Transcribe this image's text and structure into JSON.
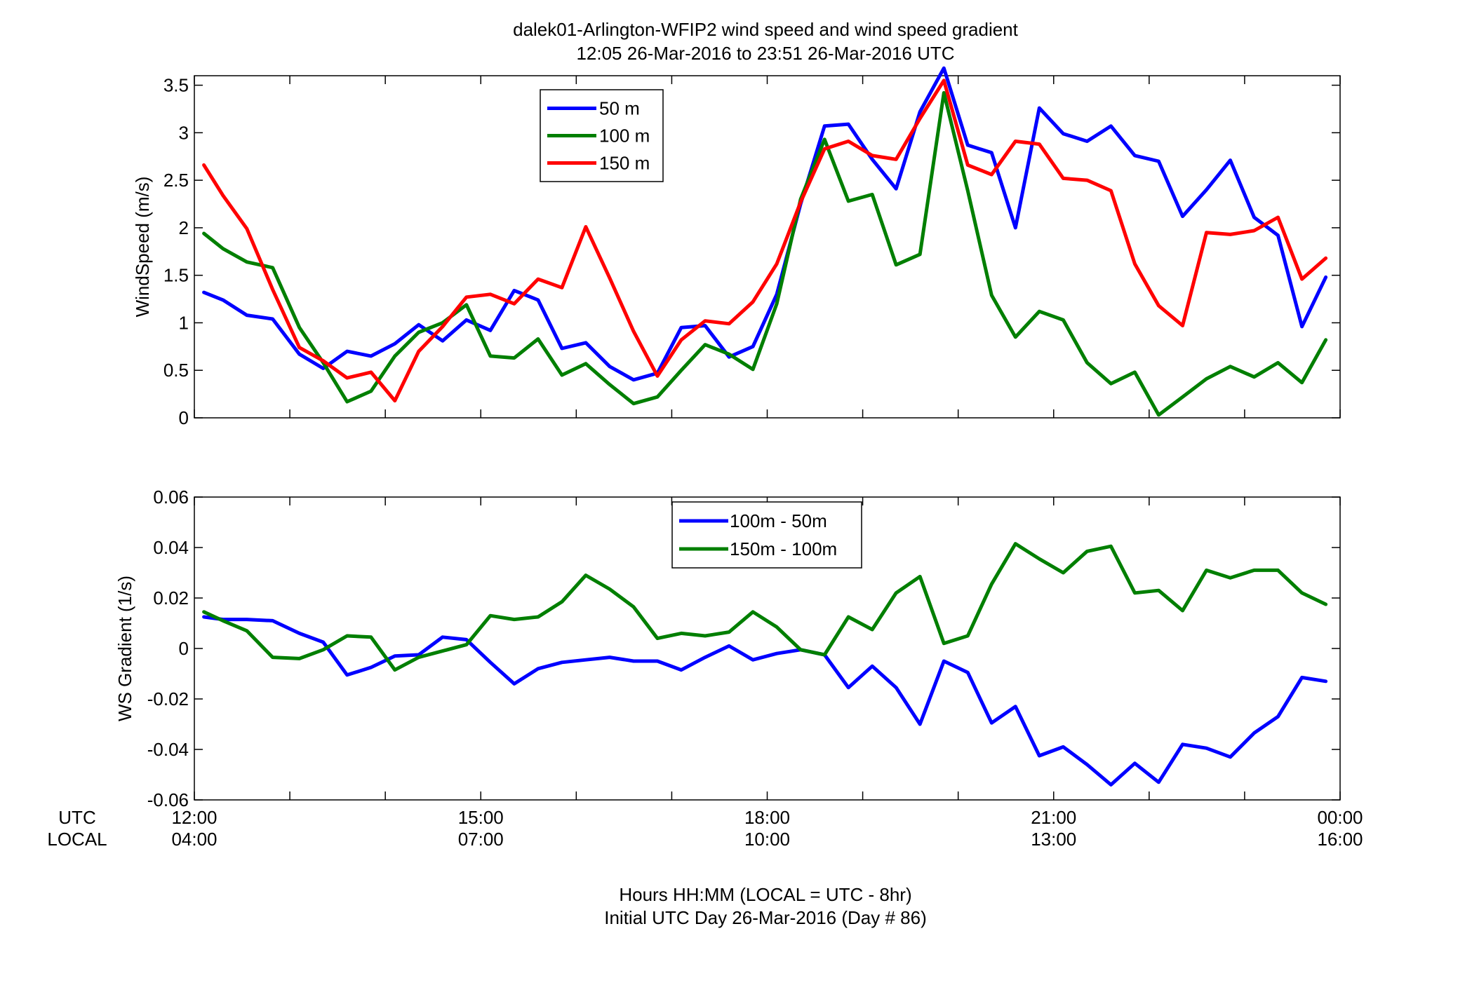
{
  "figure": {
    "title_line1": "dalek01-Arlington-WFIP2  wind speed and wind speed gradient",
    "title_line2": "12:05 26-Mar-2016 to 23:51 26-Mar-2016  UTC",
    "xlabel_line1": "Hours HH:MM  (LOCAL = UTC - 8hr)",
    "xlabel_line2": "Initial UTC Day 26-Mar-2016 (Day # 86)",
    "row_label_utc": "UTC",
    "row_label_local": "LOCAL",
    "x_ticks_utc": [
      "12:00",
      "15:00",
      "18:00",
      "21:00",
      "00:00"
    ],
    "x_ticks_local": [
      "04:00",
      "07:00",
      "10:00",
      "13:00",
      "16:00"
    ]
  },
  "chart_data": [
    {
      "type": "line",
      "ylabel": "WindSpeed (m/s)",
      "xlim": [
        12,
        24
      ],
      "ylim": [
        0,
        3.6
      ],
      "yticks": [
        0,
        0.5,
        1,
        1.5,
        2,
        2.5,
        3,
        3.5
      ],
      "ytick_labels": [
        "0",
        "0.5",
        "1",
        "1.5",
        "2",
        "2.5",
        "3",
        "3.5"
      ],
      "legend_position": "top-center-left",
      "x": [
        12.1,
        12.3,
        12.55,
        12.82,
        13.1,
        13.35,
        13.6,
        13.85,
        14.1,
        14.35,
        14.6,
        14.85,
        15.1,
        15.35,
        15.6,
        15.85,
        16.1,
        16.35,
        16.6,
        16.85,
        17.1,
        17.35,
        17.6,
        17.85,
        18.1,
        18.35,
        18.6,
        18.85,
        19.1,
        19.35,
        19.6,
        19.85,
        20.1,
        20.35,
        20.6,
        20.85,
        21.1,
        21.35,
        21.6,
        21.85,
        22.1,
        22.35,
        22.6,
        22.85,
        23.1,
        23.35,
        23.6,
        23.85
      ],
      "series": [
        {
          "name": "50 m",
          "color": "#0000ff",
          "values": [
            1.32,
            1.24,
            1.08,
            1.04,
            0.67,
            0.52,
            0.7,
            0.65,
            0.78,
            0.98,
            0.81,
            1.03,
            0.92,
            1.34,
            1.24,
            0.73,
            0.79,
            0.54,
            0.4,
            0.47,
            0.95,
            0.97,
            0.64,
            0.75,
            1.3,
            2.25,
            3.07,
            3.09,
            2.72,
            2.41,
            3.22,
            3.68,
            2.87,
            2.79,
            2.0,
            3.26,
            2.99,
            2.91,
            3.07,
            2.76,
            2.7,
            2.12,
            2.4,
            2.71,
            2.11,
            1.92,
            0.96,
            1.48
          ]
        },
        {
          "name": "100 m",
          "color": "#007f00",
          "values": [
            1.94,
            1.78,
            1.64,
            1.58,
            0.95,
            0.58,
            0.17,
            0.28,
            0.65,
            0.9,
            1.0,
            1.19,
            0.65,
            0.63,
            0.83,
            0.45,
            0.57,
            0.35,
            0.15,
            0.22,
            0.5,
            0.77,
            0.67,
            0.51,
            1.2,
            2.3,
            2.93,
            2.28,
            2.35,
            1.61,
            1.72,
            3.42,
            2.39,
            1.29,
            0.85,
            1.12,
            1.03,
            0.58,
            0.36,
            0.48,
            0.03,
            0.22,
            0.41,
            0.54,
            0.43,
            0.58,
            0.37,
            0.82
          ]
        },
        {
          "name": "150 m",
          "color": "#ff0000",
          "values": [
            2.66,
            2.34,
            1.99,
            1.35,
            0.74,
            0.6,
            0.42,
            0.48,
            0.18,
            0.7,
            0.96,
            1.27,
            1.3,
            1.2,
            1.46,
            1.37,
            2.01,
            1.47,
            0.91,
            0.44,
            0.82,
            1.02,
            0.99,
            1.22,
            1.62,
            2.27,
            2.83,
            2.91,
            2.76,
            2.72,
            3.15,
            3.55,
            2.66,
            2.56,
            2.91,
            2.88,
            2.52,
            2.5,
            2.39,
            1.62,
            1.18,
            0.97,
            1.95,
            1.93,
            1.97,
            2.11,
            1.46,
            1.68
          ]
        }
      ]
    },
    {
      "type": "line",
      "ylabel": "WS Gradient (1/s)",
      "xlim": [
        12,
        24
      ],
      "ylim": [
        -0.06,
        0.06
      ],
      "yticks": [
        -0.06,
        -0.04,
        -0.02,
        0,
        0.02,
        0.04,
        0.06
      ],
      "ytick_labels": [
        "-0.06",
        "-0.04",
        "-0.02",
        "0",
        "0.02",
        "0.04",
        "0.06"
      ],
      "legend_position": "top-center",
      "x": [
        12.1,
        12.3,
        12.55,
        12.82,
        13.1,
        13.35,
        13.6,
        13.85,
        14.1,
        14.35,
        14.6,
        14.85,
        15.1,
        15.35,
        15.6,
        15.85,
        16.1,
        16.35,
        16.6,
        16.85,
        17.1,
        17.35,
        17.6,
        17.85,
        18.1,
        18.35,
        18.6,
        18.85,
        19.1,
        19.35,
        19.6,
        19.85,
        20.1,
        20.35,
        20.6,
        20.85,
        21.1,
        21.35,
        21.6,
        21.85,
        22.1,
        22.35,
        22.6,
        22.85,
        23.1,
        23.35,
        23.6,
        23.85
      ],
      "series": [
        {
          "name": "100m - 50m",
          "color": "#0000ff",
          "values": [
            0.0125,
            0.0115,
            0.0115,
            0.011,
            0.006,
            0.0025,
            -0.0105,
            -0.0075,
            -0.003,
            -0.0025,
            0.0045,
            0.0035,
            -0.0055,
            -0.014,
            -0.008,
            -0.0055,
            -0.0045,
            -0.0035,
            -0.005,
            -0.005,
            -0.0085,
            -0.0035,
            0.001,
            -0.0045,
            -0.002,
            -0.0005,
            -0.0025,
            -0.0155,
            -0.007,
            -0.0155,
            -0.03,
            -0.005,
            -0.0095,
            -0.0295,
            -0.023,
            -0.0425,
            -0.039,
            -0.046,
            -0.054,
            -0.0455,
            -0.053,
            -0.038,
            -0.0395,
            -0.043,
            -0.0335,
            -0.027,
            -0.0115,
            -0.013
          ]
        },
        {
          "name": "150m - 100m",
          "color": "#007f00",
          "values": [
            0.0145,
            0.011,
            0.007,
            -0.0035,
            -0.004,
            -0.0005,
            0.005,
            0.0045,
            -0.0085,
            -0.0035,
            -0.001,
            0.0015,
            0.013,
            0.0115,
            0.0125,
            0.0185,
            0.029,
            0.0235,
            0.0165,
            0.004,
            0.006,
            0.005,
            0.0065,
            0.0145,
            0.0085,
            -0.0005,
            -0.0025,
            0.0125,
            0.0075,
            0.022,
            0.0285,
            0.002,
            0.005,
            0.0255,
            0.0415,
            0.0355,
            0.03,
            0.0385,
            0.0405,
            0.022,
            0.023,
            0.015,
            0.031,
            0.028,
            0.031,
            0.031,
            0.022,
            0.0175
          ]
        }
      ]
    }
  ]
}
